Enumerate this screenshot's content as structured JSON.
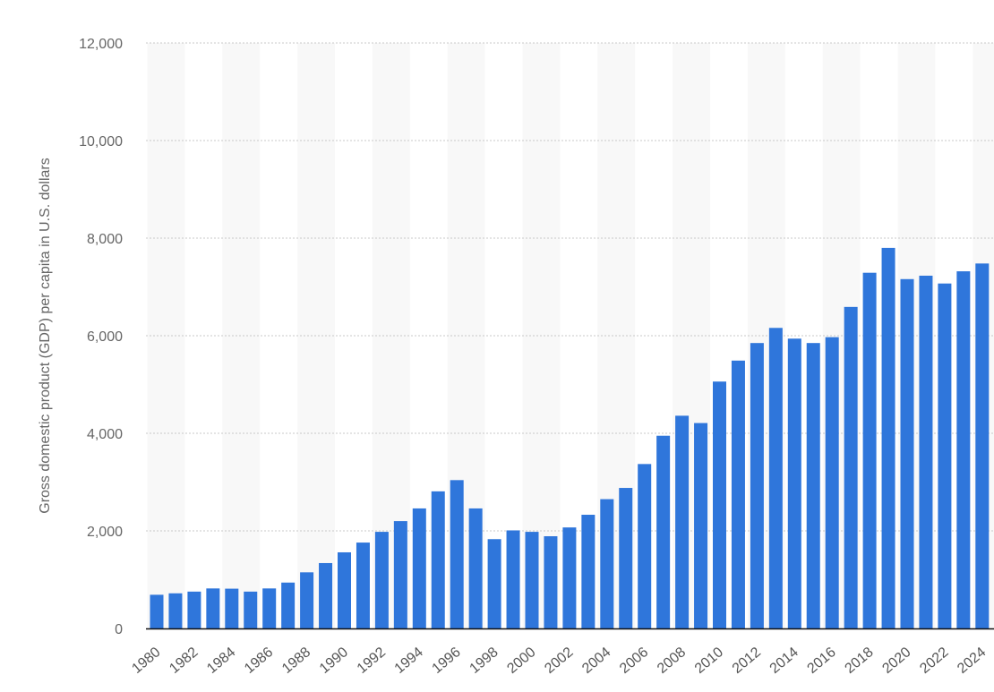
{
  "chart_data": {
    "type": "bar",
    "title": "",
    "xlabel": "",
    "ylabel": "Gross domestic product (GDP) per capita in U.S. dollars",
    "ylim": [
      0,
      12000
    ],
    "yticks": [
      0,
      2000,
      4000,
      6000,
      8000,
      10000,
      12000
    ],
    "ytick_labels": [
      "0",
      "2,000",
      "4,000",
      "6,000",
      "8,000",
      "10,000",
      "12,000"
    ],
    "grid": true,
    "legend": "none",
    "bar_color": "#2f76db",
    "categories": [
      "1980",
      "1981",
      "1982",
      "1983",
      "1984",
      "1985",
      "1986",
      "1987",
      "1988",
      "1989",
      "1990",
      "1991",
      "1992",
      "1993",
      "1994",
      "1995",
      "1996",
      "1997",
      "1998",
      "1999",
      "2000",
      "2001",
      "2002",
      "2003",
      "2004",
      "2005",
      "2006",
      "2007",
      "2008",
      "2009",
      "2010",
      "2011",
      "2012",
      "2013",
      "2014",
      "2015",
      "2016",
      "2017",
      "2018",
      "2019",
      "2020",
      "2021",
      "2022",
      "2023",
      "2024"
    ],
    "xtick_labels": [
      "1980",
      "1982",
      "1984",
      "1986",
      "1988",
      "1990",
      "1992",
      "1994",
      "1996",
      "1998",
      "2000",
      "2002",
      "2004",
      "2006",
      "2008",
      "2010",
      "2012",
      "2014",
      "2016",
      "2018",
      "2020",
      "2022",
      "2024"
    ],
    "values": [
      690,
      720,
      755,
      820,
      815,
      755,
      820,
      940,
      1150,
      1340,
      1560,
      1760,
      1980,
      2200,
      2460,
      2810,
      3040,
      2460,
      1830,
      2010,
      1980,
      1890,
      2070,
      2330,
      2650,
      2880,
      3370,
      3950,
      4360,
      4210,
      5060,
      5490,
      5850,
      6160,
      5940,
      5850,
      5970,
      6590,
      7290,
      7800,
      7160,
      7230,
      7070,
      7320,
      7480
    ]
  }
}
